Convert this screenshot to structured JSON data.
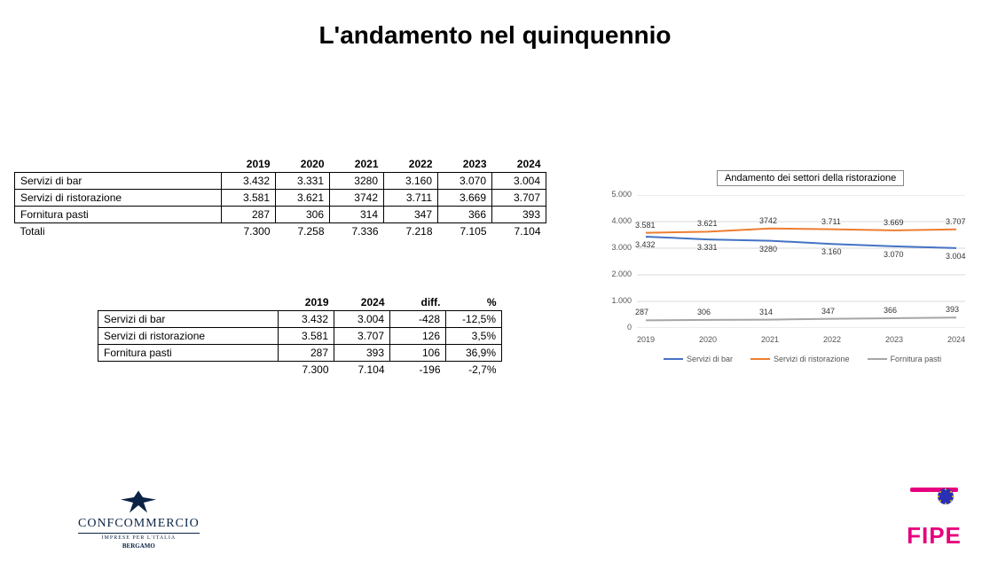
{
  "title": {
    "text": "L'andamento nel quinquennio",
    "fontsize": 28
  },
  "table1": {
    "years": [
      "2019",
      "2020",
      "2021",
      "2022",
      "2023",
      "2024"
    ],
    "rows": [
      {
        "label": "Servizi di bar",
        "v": [
          "3.432",
          "3.331",
          "3280",
          "3.160",
          "3.070",
          "3.004"
        ]
      },
      {
        "label": "Servizi di ristorazione",
        "v": [
          "3.581",
          "3.621",
          "3742",
          "3.711",
          "3.669",
          "3.707"
        ]
      },
      {
        "label": "Fornitura pasti",
        "v": [
          "287",
          "306",
          "314",
          "347",
          "366",
          "393"
        ]
      }
    ],
    "totali": {
      "label": "Totali",
      "v": [
        "7.300",
        "7.258",
        "7.336",
        "7.218",
        "7.105",
        "7.104"
      ]
    }
  },
  "table2": {
    "headers": [
      "2019",
      "2024",
      "diff.",
      "%"
    ],
    "rows": [
      {
        "label": "Servizi di bar",
        "v": [
          "3.432",
          "3.004",
          "-428",
          "-12,5%"
        ]
      },
      {
        "label": "Servizi di ristorazione",
        "v": [
          "3.581",
          "3.707",
          "126",
          "3,5%"
        ]
      },
      {
        "label": "Fornitura pasti",
        "v": [
          "287",
          "393",
          "106",
          "36,9%"
        ]
      }
    ],
    "totali": {
      "label": "",
      "v": [
        "7.300",
        "7.104",
        "-196",
        "-2,7%"
      ]
    }
  },
  "chart": {
    "title": "Andamento dei settori della ristorazione",
    "type": "line",
    "categories": [
      "2019",
      "2020",
      "2021",
      "2022",
      "2023",
      "2024"
    ],
    "ylim": [
      0,
      5000
    ],
    "ytick_step": 1000,
    "ytick_labels": [
      "0",
      "1.000",
      "2.000",
      "3.000",
      "4.000",
      "5.000"
    ],
    "grid_color": "#d9d9d9",
    "axis_color": "#bfbfbf",
    "background_color": "#ffffff",
    "line_width": 2,
    "series": [
      {
        "name": "Servizi di bar",
        "color": "#4472c4",
        "values": [
          3432,
          3331,
          3280,
          3160,
          3070,
          3004
        ],
        "labels": [
          "3.432",
          "3.331",
          "3280",
          "3.160",
          "3.070",
          "3.004"
        ],
        "label_pos": "below"
      },
      {
        "name": "Servizi di ristorazione",
        "color": "#ed7d31",
        "values": [
          3581,
          3621,
          3742,
          3711,
          3669,
          3707
        ],
        "labels": [
          "3.581",
          "3.621",
          "3742",
          "3.711",
          "3.669",
          "3.707"
        ],
        "label_pos": "above"
      },
      {
        "name": "Fornitura pasti",
        "color": "#a6a6a6",
        "values": [
          287,
          306,
          314,
          347,
          366,
          393
        ],
        "labels": [
          "287",
          "306",
          "314",
          "347",
          "366",
          "393"
        ],
        "label_pos": "above"
      }
    ],
    "label_fontsize": 9,
    "tick_fontsize": 9
  },
  "logo_left": {
    "name": "CONFCOMMERCIO",
    "sub": "IMPRESE PER L'ITALIA",
    "city": "BERGAMO",
    "color": "#0b2345"
  },
  "logo_right": {
    "text": "FIPE",
    "text_color": "#e6007e",
    "circle_color": "#2b2fb5",
    "star_color": "#f2c400"
  }
}
